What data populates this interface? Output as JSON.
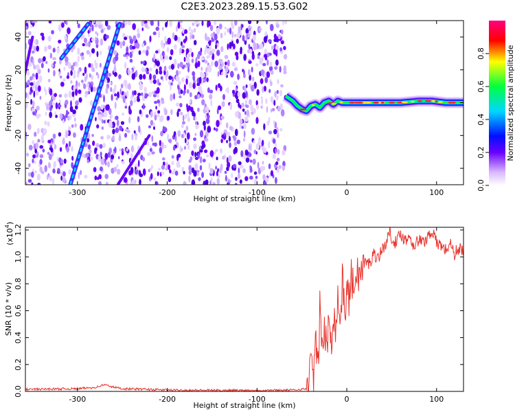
{
  "title": "C2E3.2023.289.15.53.G02",
  "chart_data": [
    {
      "type": "heatmap",
      "title": "C2E3.2023.289.15.53.G02",
      "xlabel": "Height of straight line (km)",
      "ylabel": "Frequency (Hz)",
      "xlim": [
        -358,
        130
      ],
      "ylim": [
        -50,
        50
      ],
      "x_ticks": [
        -300,
        -200,
        -100,
        0,
        100
      ],
      "x_tick_labels": [
        "-300",
        "-200",
        "-100",
        "0",
        "100"
      ],
      "y_ticks": [
        -40,
        -20,
        0,
        20,
        40
      ],
      "y_tick_labels": [
        "-40",
        "-20",
        "0",
        "20",
        "40"
      ],
      "noise_region_x": [
        -358,
        -68
      ],
      "signal_track": {
        "x": [
          -68,
          -60,
          -55,
          -50,
          -45,
          -40,
          -35,
          -30,
          -25,
          -20,
          -15,
          -10,
          -5,
          0,
          10,
          20,
          40,
          60,
          80,
          95,
          110,
          130
        ],
        "freq": [
          4,
          1,
          -2,
          -4,
          -5,
          -2,
          -1,
          -3,
          0,
          1,
          -1,
          1,
          0,
          0,
          0,
          0,
          0,
          0,
          1,
          1,
          0,
          0
        ]
      },
      "streaks": [
        {
          "x": [
            -308,
            -253
          ],
          "freq": [
            -50,
            48
          ],
          "strength": 0.35
        },
        {
          "x": [
            -318,
            -288
          ],
          "freq": [
            27,
            48
          ],
          "strength": 0.3
        },
        {
          "x": [
            -255,
            -220
          ],
          "freq": [
            -50,
            -20
          ],
          "strength": 0.12
        },
        {
          "x": [
            -360,
            -350
          ],
          "freq": [
            14,
            40
          ],
          "strength": 0.12
        }
      ],
      "colorbar": {
        "label": "Normalized spectral amplitude",
        "range": [
          0,
          1
        ],
        "ticks": [
          0.0,
          0.2,
          0.4,
          0.6,
          0.8
        ],
        "tick_labels": [
          "0.0",
          "0.2",
          "0.4",
          "0.6",
          "0.8"
        ],
        "colors": [
          "#ffffff",
          "#6a00ff",
          "#0000ff",
          "#00d8ff",
          "#00ff40",
          "#ffff00",
          "#ff0000",
          "#ff0080"
        ]
      }
    },
    {
      "type": "line",
      "xlabel": "Height of straight line (km)",
      "ylabel": "SNR (10 * v/v)",
      "exponent_label": "(x10",
      "exponent_power": "4",
      "exponent_close": ")",
      "xlim": [
        -358,
        130
      ],
      "ylim": [
        0.0,
        1.22
      ],
      "x_ticks": [
        -300,
        -200,
        -100,
        0,
        100
      ],
      "x_tick_labels": [
        "-300",
        "-200",
        "-100",
        "0",
        "100"
      ],
      "y_ticks": [
        0.0,
        0.2,
        0.4,
        0.6,
        0.8,
        1.0,
        1.2
      ],
      "y_tick_labels": [
        "0.0",
        "0.2",
        "0.4",
        "0.6",
        "0.8",
        "1.0",
        "1.2"
      ],
      "series": [
        {
          "color": "#e8322c",
          "x": [
            -358,
            -330,
            -300,
            -280,
            -270,
            -262,
            -250,
            -220,
            -200,
            -150,
            -100,
            -60,
            -45,
            -42,
            -40,
            -37,
            -35,
            -32,
            -30,
            -27,
            -25,
            -22,
            -20,
            -17,
            -15,
            -12,
            -10,
            -7,
            -5,
            -2,
            0,
            3,
            5,
            8,
            10,
            15,
            20,
            25,
            30,
            35,
            40,
            45,
            48,
            50,
            55,
            60,
            65,
            70,
            75,
            80,
            85,
            90,
            95,
            100,
            105,
            110,
            115,
            120,
            125,
            130
          ],
          "y": [
            0.015,
            0.018,
            0.02,
            0.03,
            0.05,
            0.035,
            0.02,
            0.015,
            0.01,
            0.008,
            0.008,
            0.01,
            0.02,
            0.08,
            0.22,
            0.12,
            0.35,
            0.18,
            0.62,
            0.3,
            0.48,
            0.28,
            0.55,
            0.4,
            0.6,
            0.45,
            0.72,
            0.5,
            0.82,
            0.6,
            0.75,
            0.68,
            0.88,
            0.72,
            0.9,
            0.86,
            0.96,
            0.95,
            1.02,
            1.0,
            1.06,
            1.12,
            1.2,
            1.15,
            1.1,
            1.18,
            1.12,
            1.16,
            1.08,
            1.13,
            1.1,
            1.15,
            1.2,
            1.1,
            1.09,
            1.05,
            1.1,
            1.02,
            1.07,
            1.04
          ]
        }
      ]
    }
  ]
}
